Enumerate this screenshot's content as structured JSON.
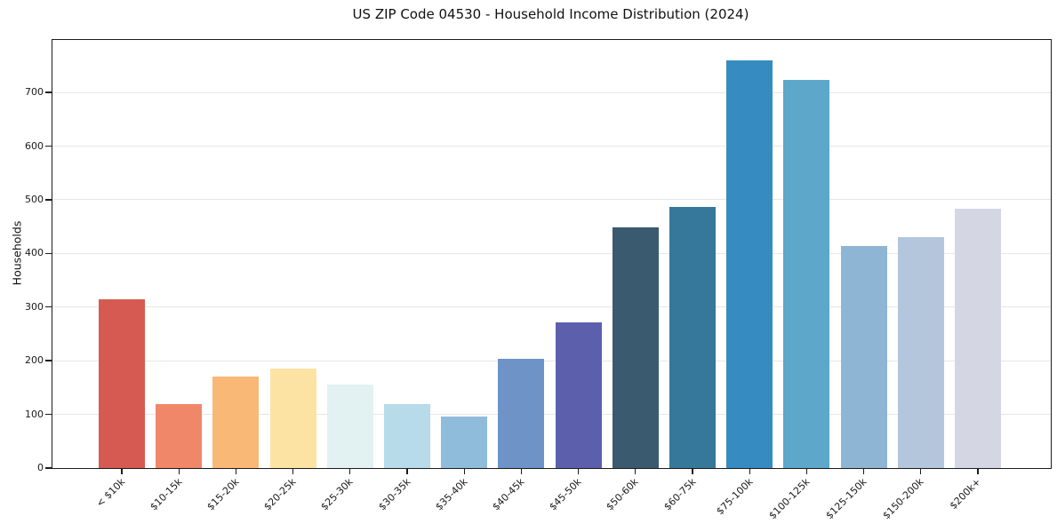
{
  "chart_data": {
    "type": "bar",
    "title": "US ZIP Code 04530 - Household Income Distribution (2024)",
    "xlabel": "",
    "ylabel": "Households",
    "categories": [
      "< $10k",
      "$10-15k",
      "$15-20k",
      "$20-25k",
      "$25-30k",
      "$30-35k",
      "$35-40k",
      "$40-45k",
      "$45-50k",
      "$50-60k",
      "$60-75k",
      "$75-100k",
      "$100-125k",
      "$125-150k",
      "$150-200k",
      "$200k+"
    ],
    "values": [
      314,
      120,
      170,
      186,
      155,
      119,
      96,
      203,
      271,
      448,
      486,
      760,
      723,
      414,
      431,
      483
    ],
    "bar_colors": [
      "#d65a52",
      "#f08769",
      "#fab877",
      "#fde3a3",
      "#e2f1f2",
      "#b7dbe9",
      "#90bcdb",
      "#6e94c7",
      "#5c60ac",
      "#3a5a70",
      "#35789a",
      "#368cc0",
      "#5ca7ca",
      "#8fb5d5",
      "#b3c6dc",
      "#d4d7e3"
    ],
    "ylim": [
      0,
      798
    ],
    "yticks": [
      0,
      100,
      200,
      300,
      400,
      500,
      600,
      700
    ],
    "grid": "horizontal",
    "x_tick_rotation": 45,
    "legend": "none",
    "grid_color": "#e7e7e7",
    "spine_color": "#1c1c1c"
  }
}
